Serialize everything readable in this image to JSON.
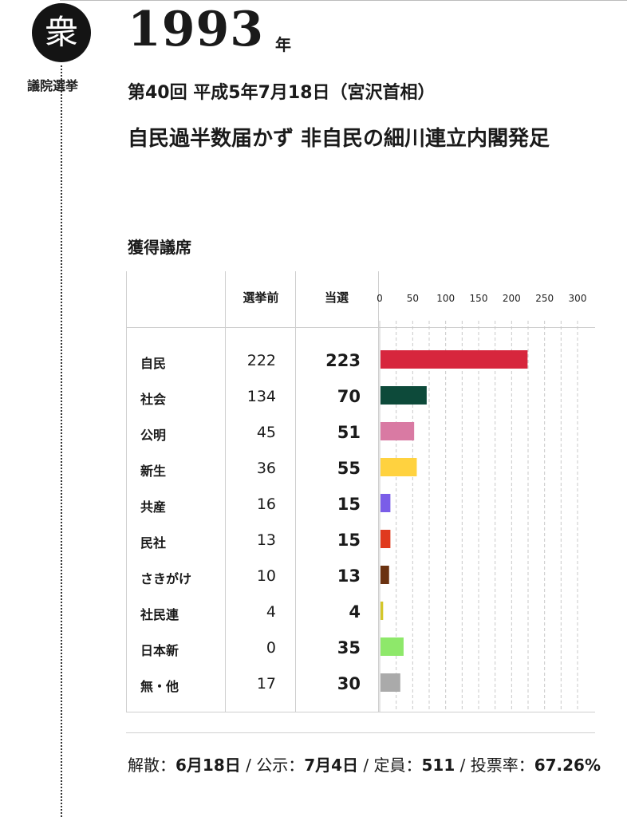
{
  "header": {
    "badge_char": "衆",
    "house_label": "議院選挙",
    "year": "1993",
    "year_unit": "年",
    "subtitle": "第40回 平成5年7月18日（宮沢首相）",
    "headline": "自民過半数届かず 非自民の細川連立内閣発足"
  },
  "section_title": "獲得議席",
  "table": {
    "col_before": "選挙前",
    "col_won": "当選"
  },
  "chart_data": {
    "type": "bar",
    "orientation": "horizontal",
    "categories": [
      "自民",
      "社会",
      "公明",
      "新生",
      "共産",
      "民社",
      "さきがけ",
      "社民連",
      "日本新",
      "無・他"
    ],
    "before": [
      222,
      134,
      45,
      36,
      16,
      13,
      10,
      4,
      0,
      17
    ],
    "values": [
      223,
      70,
      51,
      55,
      15,
      15,
      13,
      4,
      35,
      30
    ],
    "colors": [
      "#d7263d",
      "#0d4a3a",
      "#d97aa3",
      "#ffd23f",
      "#7a5de8",
      "#e03a1e",
      "#6b3211",
      "#d4c72a",
      "#8ee86a",
      "#aaaaaa"
    ],
    "ticks": [
      "0",
      "50",
      "100",
      "150",
      "200",
      "250",
      "300"
    ],
    "xlim": [
      0,
      300
    ],
    "grid": true
  },
  "footer": {
    "dissolution_label": "解散：",
    "dissolution_value": "6月18日",
    "announce_label": "公示：",
    "announce_value": "7月4日",
    "seats_label": "定員：",
    "seats_value": "511",
    "turnout_label": "投票率：",
    "turnout_value": "67.26%",
    "separator": " / "
  }
}
